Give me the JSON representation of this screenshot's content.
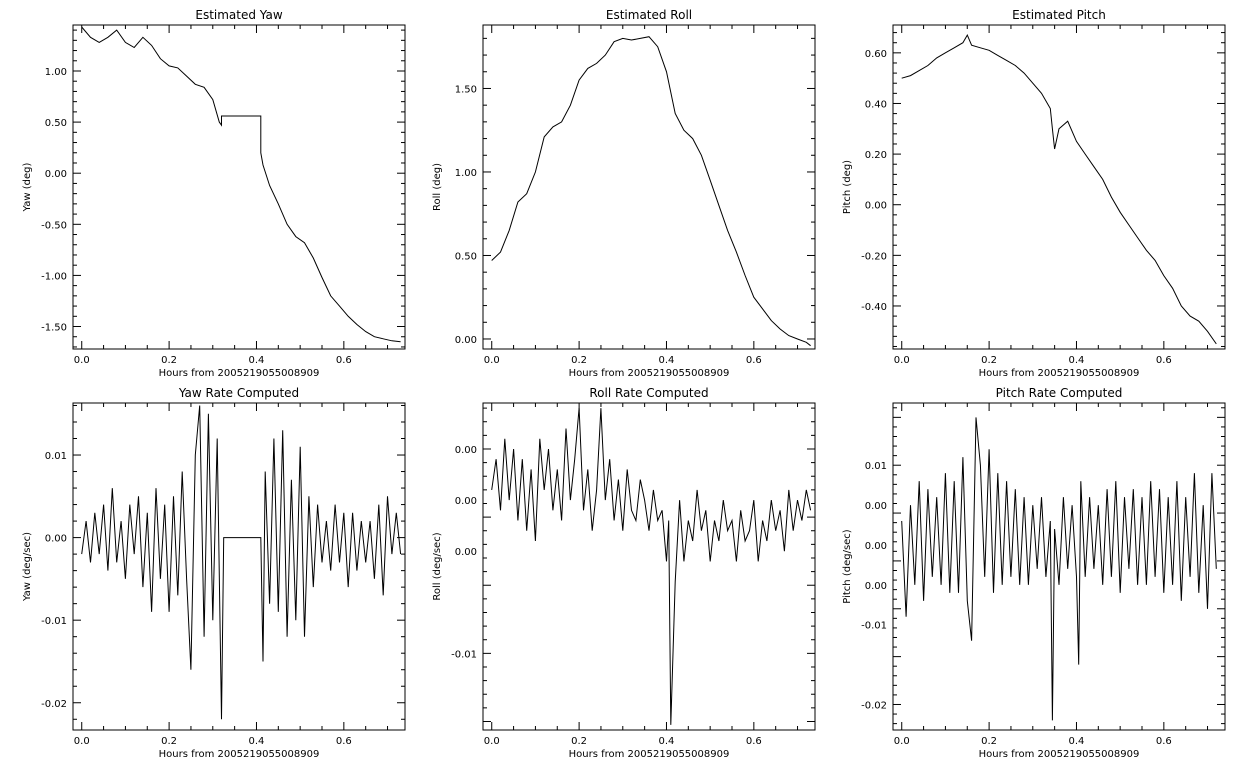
{
  "chart_data": [
    {
      "type": "line",
      "title": "Estimated Yaw",
      "xlabel": "Hours from 2005219055008909",
      "ylabel": "Yaw (deg)",
      "xlim": [
        -0.02,
        0.74
      ],
      "ylim": [
        -1.72,
        1.45
      ],
      "xticks": [
        0.0,
        0.2,
        0.4,
        0.6
      ],
      "xtick_labels": [
        "0.0",
        "0.2",
        "0.4",
        "0.6"
      ],
      "yticks": [
        -1.5,
        -1.0,
        -0.5,
        0.0,
        0.5,
        1.0
      ],
      "ytick_labels": [
        "-1.50",
        "-1.00",
        "-0.50",
        "0.00",
        "0.50",
        "1.00"
      ],
      "series": [
        {
          "x": [
            0.0,
            0.02,
            0.04,
            0.06,
            0.08,
            0.1,
            0.12,
            0.14,
            0.16,
            0.18,
            0.2,
            0.22,
            0.24,
            0.26,
            0.28,
            0.3,
            0.315,
            0.32,
            0.32,
            0.41,
            0.41,
            0.415,
            0.43,
            0.45,
            0.47,
            0.49,
            0.51,
            0.53,
            0.55,
            0.57,
            0.59,
            0.61,
            0.63,
            0.65,
            0.67,
            0.69,
            0.71,
            0.73
          ],
          "y": [
            1.43,
            1.33,
            1.28,
            1.33,
            1.4,
            1.28,
            1.23,
            1.33,
            1.25,
            1.12,
            1.05,
            1.03,
            0.95,
            0.87,
            0.84,
            0.72,
            0.5,
            0.47,
            0.56,
            0.56,
            0.2,
            0.08,
            -0.12,
            -0.3,
            -0.5,
            -0.62,
            -0.68,
            -0.83,
            -1.02,
            -1.2,
            -1.3,
            -1.4,
            -1.48,
            -1.55,
            -1.6,
            -1.62,
            -1.64,
            -1.65
          ]
        }
      ]
    },
    {
      "type": "line",
      "title": "Estimated Roll",
      "xlabel": "Hours from 2005219055008909",
      "ylabel": "Roll (deg)",
      "xlim": [
        -0.02,
        0.74
      ],
      "ylim": [
        -0.06,
        1.88
      ],
      "xticks": [
        0.0,
        0.2,
        0.4,
        0.6
      ],
      "xtick_labels": [
        "0.0",
        "0.2",
        "0.4",
        "0.6"
      ],
      "yticks": [
        0.0,
        0.5,
        1.0,
        1.5
      ],
      "ytick_labels": [
        "0.00",
        "0.50",
        "1.00",
        "1.50"
      ],
      "series": [
        {
          "x": [
            0.0,
            0.02,
            0.04,
            0.06,
            0.08,
            0.1,
            0.12,
            0.14,
            0.16,
            0.18,
            0.2,
            0.22,
            0.24,
            0.26,
            0.28,
            0.3,
            0.32,
            0.34,
            0.36,
            0.38,
            0.4,
            0.42,
            0.44,
            0.46,
            0.48,
            0.5,
            0.52,
            0.54,
            0.56,
            0.58,
            0.6,
            0.62,
            0.64,
            0.66,
            0.68,
            0.7,
            0.72,
            0.73
          ],
          "y": [
            0.47,
            0.52,
            0.65,
            0.82,
            0.87,
            1.0,
            1.21,
            1.27,
            1.3,
            1.4,
            1.55,
            1.62,
            1.65,
            1.7,
            1.78,
            1.8,
            1.79,
            1.8,
            1.81,
            1.75,
            1.6,
            1.35,
            1.25,
            1.2,
            1.1,
            0.95,
            0.8,
            0.65,
            0.52,
            0.38,
            0.25,
            0.18,
            0.11,
            0.06,
            0.02,
            0.0,
            -0.02,
            -0.04
          ]
        }
      ]
    },
    {
      "type": "line",
      "title": "Estimated Pitch",
      "xlabel": "Hours from 2005219055008909",
      "ylabel": "Pitch (deg)",
      "xlim": [
        -0.02,
        0.74
      ],
      "ylim": [
        -0.57,
        0.71
      ],
      "xticks": [
        0.0,
        0.2,
        0.4,
        0.6
      ],
      "xtick_labels": [
        "0.0",
        "0.2",
        "0.4",
        "0.6"
      ],
      "yticks": [
        -0.4,
        -0.2,
        0.0,
        0.2,
        0.4,
        0.6
      ],
      "ytick_labels": [
        "-0.40",
        "-0.20",
        "0.00",
        "0.20",
        "0.40",
        "0.60"
      ],
      "series": [
        {
          "x": [
            0.0,
            0.02,
            0.04,
            0.06,
            0.08,
            0.1,
            0.12,
            0.14,
            0.15,
            0.16,
            0.18,
            0.2,
            0.22,
            0.24,
            0.26,
            0.28,
            0.3,
            0.32,
            0.34,
            0.345,
            0.35,
            0.36,
            0.38,
            0.4,
            0.42,
            0.44,
            0.46,
            0.48,
            0.5,
            0.52,
            0.54,
            0.56,
            0.58,
            0.6,
            0.62,
            0.64,
            0.66,
            0.68,
            0.7,
            0.72
          ],
          "y": [
            0.5,
            0.51,
            0.53,
            0.55,
            0.58,
            0.6,
            0.62,
            0.64,
            0.67,
            0.63,
            0.62,
            0.61,
            0.59,
            0.57,
            0.55,
            0.52,
            0.48,
            0.44,
            0.38,
            0.3,
            0.22,
            0.3,
            0.33,
            0.25,
            0.2,
            0.15,
            0.1,
            0.03,
            -0.03,
            -0.08,
            -0.13,
            -0.18,
            -0.22,
            -0.28,
            -0.33,
            -0.4,
            -0.44,
            -0.46,
            -0.5,
            -0.55
          ]
        }
      ]
    },
    {
      "type": "line",
      "title": "Yaw Rate Computed",
      "xlabel": "Hours from 2005219055008909",
      "ylabel": "Yaw (deg/sec)",
      "xlim": [
        -0.02,
        0.74
      ],
      "ylim": [
        -0.0233,
        0.0163
      ],
      "xticks": [
        0.0,
        0.2,
        0.4,
        0.6
      ],
      "xtick_labels": [
        "0.0",
        "0.2",
        "0.4",
        "0.6"
      ],
      "yticks": [
        -0.02,
        -0.01,
        0.0,
        0.01
      ],
      "ytick_labels": [
        "-0.02",
        "-0.01",
        "0.00",
        "0.01"
      ],
      "series": [
        {
          "x": [
            0.0,
            0.01,
            0.02,
            0.03,
            0.04,
            0.05,
            0.06,
            0.07,
            0.08,
            0.09,
            0.1,
            0.11,
            0.12,
            0.13,
            0.14,
            0.15,
            0.16,
            0.17,
            0.18,
            0.19,
            0.2,
            0.21,
            0.22,
            0.23,
            0.24,
            0.25,
            0.26,
            0.27,
            0.28,
            0.29,
            0.3,
            0.31,
            0.32,
            0.325,
            0.41,
            0.415,
            0.42,
            0.43,
            0.44,
            0.45,
            0.46,
            0.47,
            0.48,
            0.49,
            0.5,
            0.51,
            0.52,
            0.53,
            0.54,
            0.55,
            0.56,
            0.57,
            0.58,
            0.59,
            0.6,
            0.61,
            0.62,
            0.63,
            0.64,
            0.65,
            0.66,
            0.67,
            0.68,
            0.69,
            0.7,
            0.71,
            0.72,
            0.73
          ],
          "y": [
            -0.002,
            0.002,
            -0.003,
            0.003,
            -0.002,
            0.004,
            -0.004,
            0.006,
            -0.003,
            0.002,
            -0.005,
            0.004,
            -0.002,
            0.005,
            -0.006,
            0.003,
            -0.009,
            0.006,
            -0.005,
            0.004,
            -0.009,
            0.005,
            -0.007,
            0.008,
            -0.005,
            -0.016,
            0.01,
            0.016,
            -0.012,
            0.015,
            -0.01,
            0.012,
            -0.022,
            0.0,
            0.0,
            -0.015,
            0.008,
            -0.008,
            0.012,
            -0.009,
            0.013,
            -0.012,
            0.007,
            -0.01,
            0.011,
            -0.012,
            0.005,
            -0.006,
            0.004,
            -0.003,
            0.002,
            -0.004,
            0.004,
            -0.003,
            0.003,
            -0.006,
            0.003,
            -0.004,
            0.002,
            -0.003,
            0.002,
            -0.005,
            0.004,
            -0.007,
            0.005,
            -0.002,
            0.003,
            -0.002
          ]
        }
      ]
    },
    {
      "type": "line",
      "title": "Roll Rate Computed",
      "xlabel": "Hours from 2005219055008909",
      "ylabel": "Roll (deg/sec)",
      "xlim": [
        -0.02,
        0.74
      ],
      "ylim": [
        -0.0175,
        0.0145
      ],
      "xticks": [
        0.0,
        0.2,
        0.4,
        0.6
      ],
      "xtick_labels": [
        "0.0",
        "0.2",
        "0.4",
        "0.6"
      ],
      "yticks": [
        -0.01,
        0.0,
        0.005,
        0.01
      ],
      "ytick_labels": [
        "-0.01",
        "0.00",
        "0.00",
        "0.00"
      ],
      "series": [
        {
          "x": [
            0.0,
            0.01,
            0.02,
            0.03,
            0.04,
            0.05,
            0.06,
            0.07,
            0.08,
            0.09,
            0.1,
            0.11,
            0.12,
            0.13,
            0.14,
            0.15,
            0.16,
            0.17,
            0.18,
            0.19,
            0.2,
            0.21,
            0.22,
            0.23,
            0.24,
            0.25,
            0.26,
            0.27,
            0.28,
            0.29,
            0.3,
            0.31,
            0.32,
            0.33,
            0.34,
            0.35,
            0.36,
            0.37,
            0.38,
            0.39,
            0.4,
            0.405,
            0.41,
            0.42,
            0.43,
            0.44,
            0.45,
            0.46,
            0.47,
            0.48,
            0.49,
            0.5,
            0.51,
            0.52,
            0.53,
            0.54,
            0.55,
            0.56,
            0.57,
            0.58,
            0.59,
            0.6,
            0.61,
            0.62,
            0.63,
            0.64,
            0.65,
            0.66,
            0.67,
            0.68,
            0.69,
            0.7,
            0.71,
            0.72,
            0.73
          ],
          "y": [
            0.006,
            0.009,
            0.004,
            0.011,
            0.005,
            0.01,
            0.003,
            0.009,
            0.002,
            0.008,
            0.001,
            0.011,
            0.006,
            0.01,
            0.004,
            0.008,
            0.003,
            0.012,
            0.005,
            0.009,
            0.014,
            0.004,
            0.008,
            0.002,
            0.006,
            0.014,
            0.005,
            0.009,
            0.003,
            0.007,
            0.002,
            0.008,
            0.004,
            0.003,
            0.007,
            0.005,
            0.002,
            0.006,
            0.003,
            0.004,
            -0.001,
            0.003,
            -0.017,
            -0.003,
            0.005,
            -0.001,
            0.003,
            0.001,
            0.006,
            0.002,
            0.004,
            -0.001,
            0.003,
            0.001,
            0.005,
            0.002,
            0.003,
            -0.001,
            0.004,
            0.001,
            0.002,
            0.005,
            -0.001,
            0.003,
            0.001,
            0.005,
            0.002,
            0.004,
            0.0,
            0.006,
            0.002,
            0.005,
            0.003,
            0.006,
            0.004
          ]
        }
      ]
    },
    {
      "type": "line",
      "title": "Pitch Rate Computed",
      "xlabel": "Hours from 2005219055008909",
      "ylabel": "Pitch (deg/sec)",
      "xlim": [
        -0.02,
        0.74
      ],
      "ylim": [
        -0.0232,
        0.0178
      ],
      "xticks": [
        0.0,
        0.2,
        0.4,
        0.6
      ],
      "xtick_labels": [
        "0.0",
        "0.2",
        "0.4",
        "0.6"
      ],
      "yticks": [
        -0.02,
        -0.01,
        -0.005,
        0.0,
        0.005,
        0.01
      ],
      "ytick_labels": [
        "-0.02",
        "-0.01",
        "0.00",
        "0.00",
        "0.00",
        "0.01"
      ],
      "series": [
        {
          "x": [
            0.0,
            0.01,
            0.02,
            0.03,
            0.04,
            0.05,
            0.06,
            0.07,
            0.08,
            0.09,
            0.1,
            0.11,
            0.12,
            0.13,
            0.14,
            0.15,
            0.16,
            0.17,
            0.18,
            0.19,
            0.2,
            0.21,
            0.22,
            0.23,
            0.24,
            0.25,
            0.26,
            0.27,
            0.28,
            0.29,
            0.3,
            0.31,
            0.32,
            0.33,
            0.34,
            0.345,
            0.35,
            0.36,
            0.37,
            0.38,
            0.39,
            0.4,
            0.405,
            0.41,
            0.42,
            0.43,
            0.44,
            0.45,
            0.46,
            0.47,
            0.48,
            0.49,
            0.5,
            0.51,
            0.52,
            0.53,
            0.54,
            0.55,
            0.56,
            0.57,
            0.58,
            0.59,
            0.6,
            0.61,
            0.62,
            0.63,
            0.64,
            0.65,
            0.66,
            0.67,
            0.68,
            0.69,
            0.7,
            0.71,
            0.72
          ],
          "y": [
            0.003,
            -0.009,
            0.005,
            -0.005,
            0.008,
            -0.007,
            0.007,
            -0.004,
            0.006,
            -0.005,
            0.009,
            -0.006,
            0.008,
            -0.006,
            0.011,
            -0.007,
            -0.012,
            0.016,
            0.01,
            -0.004,
            0.012,
            -0.006,
            0.009,
            -0.005,
            0.008,
            -0.004,
            0.007,
            -0.005,
            0.006,
            -0.005,
            0.005,
            -0.003,
            0.006,
            -0.004,
            0.003,
            -0.022,
            0.002,
            -0.005,
            0.006,
            -0.003,
            0.005,
            -0.004,
            -0.015,
            0.008,
            -0.004,
            0.006,
            -0.003,
            0.005,
            -0.005,
            0.007,
            -0.004,
            0.008,
            -0.006,
            0.006,
            -0.003,
            0.007,
            -0.005,
            0.006,
            -0.005,
            0.008,
            -0.004,
            0.007,
            -0.006,
            0.006,
            -0.005,
            0.008,
            -0.007,
            0.006,
            -0.004,
            0.009,
            -0.006,
            0.005,
            -0.008,
            0.009,
            -0.003
          ]
        }
      ]
    }
  ]
}
